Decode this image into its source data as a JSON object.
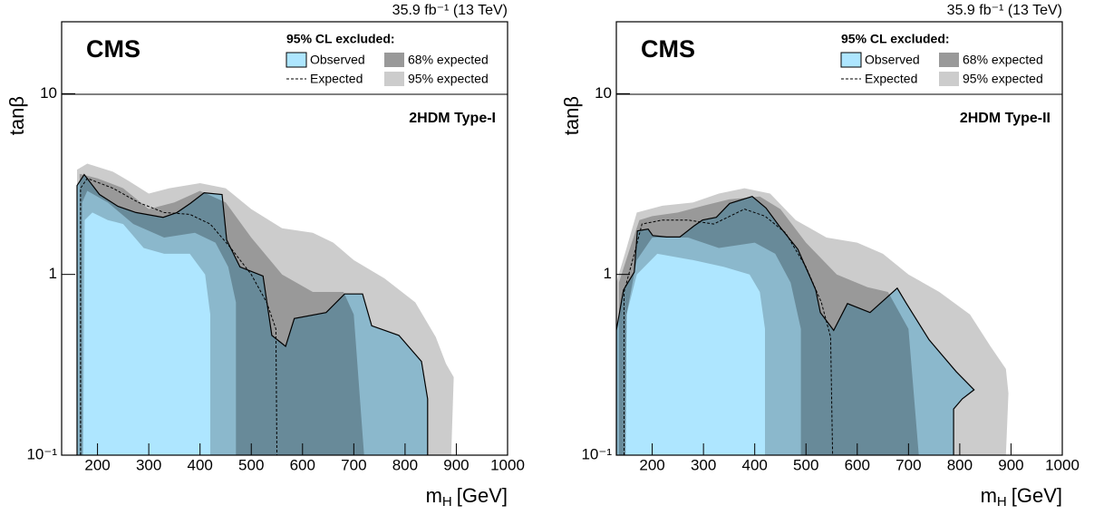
{
  "chart_data": [
    {
      "type": "contour",
      "title": "2HDM Type-I",
      "experiment": "CMS",
      "lumi": "35.9 fb⁻¹ (13 TeV)",
      "legend_title": "95% CL excluded:",
      "x_label": "m",
      "x_label_sub": "H",
      "x_label_unit": "[GeV]",
      "y_label": "tanβ",
      "xlim": [
        130,
        1000
      ],
      "xticks": [
        200,
        300,
        400,
        500,
        600,
        700,
        800,
        900,
        1000
      ],
      "ylim": [
        0.1,
        25
      ],
      "yscale": "log",
      "yticks": [
        {
          "value": 0.1,
          "label": "10⁻¹"
        },
        1,
        10
      ],
      "series": [
        {
          "name": "95% expected",
          "color": "#cccccc",
          "style": "band",
          "x": [
            160,
            160,
            180,
            230,
            260,
            300,
            340,
            400,
            450,
            500,
            560,
            620,
            660,
            700,
            760,
            820,
            860,
            880,
            895,
            890,
            420,
            420,
            410,
            380,
            330,
            290,
            250,
            220,
            190,
            175,
            172
          ],
          "y": [
            0.1,
            3.8,
            4.1,
            3.7,
            3.3,
            2.8,
            3.0,
            3.2,
            3.0,
            2.3,
            1.8,
            1.7,
            1.5,
            1.2,
            0.95,
            0.7,
            0.45,
            0.32,
            0.27,
            0.1,
            0.1,
            0.6,
            1.0,
            1.3,
            1.3,
            1.4,
            1.9,
            2.0,
            2.2,
            2.0,
            0.1
          ]
        },
        {
          "name": "68% expected",
          "color": "#999999",
          "style": "band",
          "x": [
            165,
            165,
            200,
            250,
            300,
            350,
            400,
            450,
            500,
            560,
            620,
            680,
            700,
            720,
            470,
            470,
            455,
            430,
            390,
            330,
            270,
            220,
            180,
            170,
            170
          ],
          "y": [
            0.1,
            3.6,
            3.4,
            3.0,
            2.3,
            2.5,
            2.9,
            2.5,
            1.6,
            1.0,
            0.8,
            0.8,
            0.6,
            0.1,
            0.1,
            0.7,
            1.1,
            1.5,
            1.7,
            1.6,
            1.9,
            2.5,
            2.9,
            2.5,
            0.1
          ]
        },
        {
          "name": "Observed",
          "color": "#aee6ff",
          "style": "filled",
          "x": [
            160,
            160,
            174,
            204,
            240,
            275,
            328,
            355,
            381,
            408,
            443,
            452,
            478,
            523,
            540,
            567,
            584,
            646,
            682,
            717,
            735,
            788,
            832,
            844,
            844
          ],
          "y": [
            0.1,
            3.1,
            3.57,
            2.77,
            2.38,
            2.2,
            2.07,
            2.2,
            2.47,
            2.83,
            2.77,
            1.55,
            1.1,
            0.98,
            0.46,
            0.4,
            0.57,
            0.615,
            0.78,
            0.78,
            0.52,
            0.46,
            0.33,
            0.205,
            0.1
          ]
        },
        {
          "name": "Expected",
          "color": "#000000",
          "style": "dashed",
          "x": [
            167,
            167,
            180,
            230,
            280,
            330,
            380,
            420,
            460,
            500,
            530,
            548,
            550
          ],
          "y": [
            0.1,
            3.0,
            3.4,
            3.0,
            2.5,
            2.2,
            2.15,
            1.9,
            1.4,
            1.0,
            0.7,
            0.5,
            0.1
          ]
        }
      ]
    },
    {
      "type": "contour",
      "title": "2HDM Type-II",
      "experiment": "CMS",
      "lumi": "35.9 fb⁻¹ (13 TeV)",
      "legend_title": "95% CL excluded:",
      "x_label": "m",
      "x_label_sub": "H",
      "x_label_unit": "[GeV]",
      "y_label": "tanβ",
      "xlim": [
        130,
        1000
      ],
      "xticks": [
        200,
        300,
        400,
        500,
        600,
        700,
        800,
        900,
        1000
      ],
      "ylim": [
        0.1,
        25
      ],
      "yscale": "log",
      "yticks": [
        {
          "value": 0.1,
          "label": "10⁻¹"
        },
        1,
        10
      ],
      "series": [
        {
          "name": "95% expected",
          "color": "#cccccc",
          "style": "band",
          "x": [
            130,
            130,
            150,
            170,
            220,
            280,
            330,
            380,
            430,
            480,
            540,
            600,
            650,
            700,
            760,
            820,
            860,
            890,
            895,
            890,
            420,
            420,
            410,
            390,
            340,
            280,
            210,
            170,
            150,
            140
          ],
          "y": [
            0.1,
            0.9,
            1.4,
            2.2,
            2.4,
            2.5,
            2.8,
            3.0,
            2.8,
            2.0,
            1.6,
            1.5,
            1.3,
            1.0,
            0.8,
            0.6,
            0.4,
            0.3,
            0.22,
            0.1,
            0.1,
            0.5,
            0.8,
            1.0,
            1.1,
            1.2,
            1.3,
            1.0,
            0.6,
            0.1
          ]
        },
        {
          "name": "68% expected",
          "color": "#999999",
          "style": "band",
          "x": [
            135,
            135,
            160,
            175,
            200,
            250,
            300,
            350,
            410,
            450,
            500,
            560,
            620,
            660,
            700,
            720,
            490,
            490,
            470,
            440,
            400,
            330,
            270,
            200,
            170,
            150,
            148
          ],
          "y": [
            0.1,
            0.9,
            1.5,
            2.0,
            2.1,
            2.2,
            2.4,
            2.6,
            2.7,
            2.3,
            1.5,
            1.0,
            0.85,
            0.8,
            0.5,
            0.1,
            0.1,
            0.5,
            0.9,
            1.3,
            1.5,
            1.4,
            1.6,
            1.6,
            1.2,
            0.6,
            0.1
          ]
        },
        {
          "name": "Observed",
          "color": "#aee6ff",
          "style": "filled",
          "x": [
            130,
            130,
            144,
            165,
            171,
            192,
            201,
            228,
            254,
            281,
            298,
            325,
            351,
            395,
            422,
            448,
            484,
            519,
            528,
            554,
            581,
            625,
            678,
            696,
            740,
            793,
            828,
            805,
            788,
            788
          ],
          "y": [
            0.1,
            0.49,
            0.82,
            1.03,
            1.74,
            1.78,
            1.64,
            1.61,
            1.61,
            1.85,
            2.0,
            2.07,
            2.47,
            2.7,
            2.33,
            1.85,
            1.38,
            0.82,
            0.615,
            0.49,
            0.69,
            0.615,
            0.84,
            0.69,
            0.435,
            0.29,
            0.23,
            0.205,
            0.18,
            0.1
          ]
        },
        {
          "name": "Expected",
          "color": "#000000",
          "style": "dashed",
          "x": [
            145,
            145,
            165,
            180,
            220,
            270,
            320,
            380,
            420,
            460,
            500,
            530,
            548,
            552
          ],
          "y": [
            0.1,
            0.8,
            1.3,
            1.9,
            2.0,
            2.0,
            1.9,
            2.3,
            2.1,
            1.7,
            1.1,
            0.7,
            0.45,
            0.1
          ]
        }
      ]
    }
  ]
}
